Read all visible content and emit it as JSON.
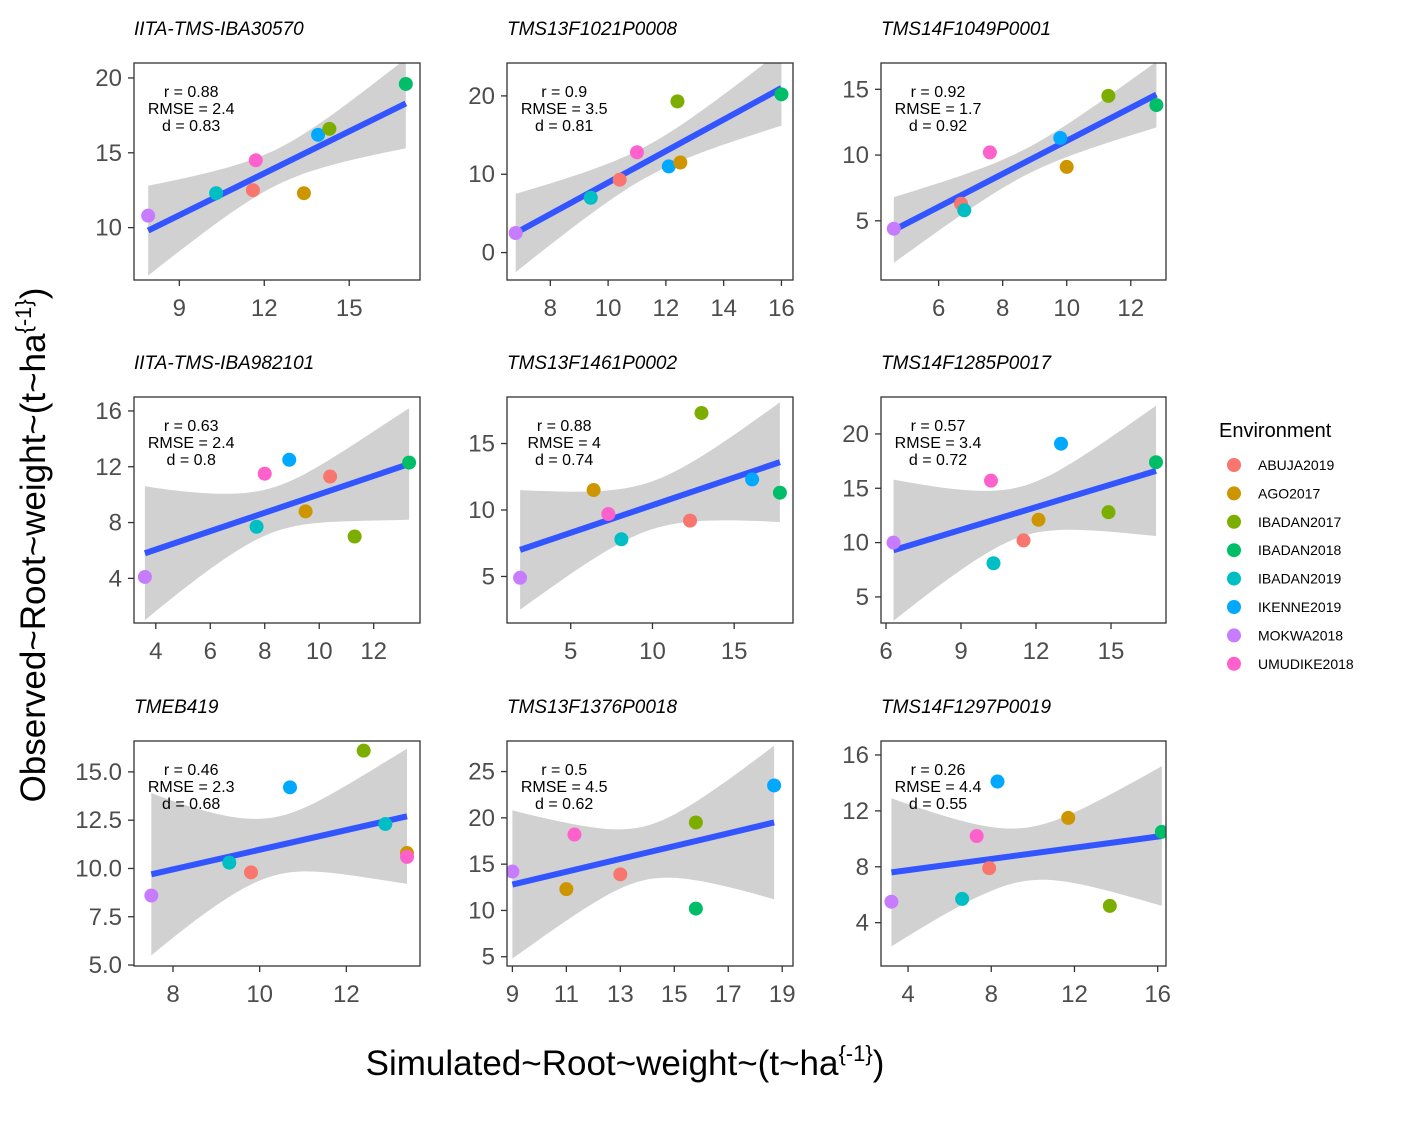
{
  "figure": {
    "x_axis_title": "Simulated~Root~weight~(t~ha",
    "x_axis_sup": "{-1}",
    "x_axis_close": ")",
    "y_axis_title": "Observed~Root~weight~(t~ha",
    "y_axis_sup": "{-1}",
    "y_axis_close": ")"
  },
  "legend": {
    "title": "Environment",
    "items": [
      {
        "label": "ABUJA2019",
        "color": "#F8766D"
      },
      {
        "label": "AGO2017",
        "color": "#CD9600"
      },
      {
        "label": "IBADAN2017",
        "color": "#7CAE00"
      },
      {
        "label": "IBADAN2018",
        "color": "#00BE67"
      },
      {
        "label": "IBADAN2019",
        "color": "#00BFC4"
      },
      {
        "label": "IKENNE2019",
        "color": "#00A9FF"
      },
      {
        "label": "MOKWA2018",
        "color": "#C77CFF"
      },
      {
        "label": "UMUDIKE2018",
        "color": "#FF61CC"
      }
    ]
  },
  "chart_data": [
    {
      "type": "scatter",
      "title": "IITA-TMS-IBA30570",
      "xlim": [
        7.4,
        17.5
      ],
      "ylim": [
        6.5,
        21.0
      ],
      "xticks": [
        9,
        12,
        15
      ],
      "yticks": [
        10,
        15,
        20
      ],
      "stats": {
        "r": "r = 0.88",
        "rmse": "RMSE = 2.4",
        "d": "d = 0.83"
      },
      "fit": {
        "x": [
          7.9,
          17.0
        ],
        "y": [
          9.8,
          18.3
        ],
        "se_ends": [
          3.0,
          3.0
        ],
        "se_mid": 1.2
      },
      "points": [
        {
          "env": "MOKWA2018",
          "x": 7.9,
          "y": 10.8
        },
        {
          "env": "IBADAN2019",
          "x": 10.3,
          "y": 12.3
        },
        {
          "env": "ABUJA2019",
          "x": 11.6,
          "y": 12.5
        },
        {
          "env": "UMUDIKE2018",
          "x": 11.7,
          "y": 14.5
        },
        {
          "env": "AGO2017",
          "x": 13.4,
          "y": 12.3
        },
        {
          "env": "IKENNE2019",
          "x": 13.9,
          "y": 16.2
        },
        {
          "env": "IBADAN2017",
          "x": 14.3,
          "y": 16.6
        },
        {
          "env": "IBADAN2018",
          "x": 17.0,
          "y": 19.6
        }
      ]
    },
    {
      "type": "scatter",
      "title": "TMS13F1021P0008",
      "xlim": [
        6.5,
        16.4
      ],
      "ylim": [
        -3.5,
        24.2
      ],
      "xticks": [
        8,
        10,
        12,
        14,
        16
      ],
      "yticks": [
        0,
        10,
        20
      ],
      "stats": {
        "r": "r = 0.9",
        "rmse": "RMSE = 3.5",
        "d": "d = 0.81"
      },
      "fit": {
        "x": [
          6.8,
          16.0
        ],
        "y": [
          2.5,
          21.0
        ],
        "se_ends": [
          5.0,
          4.8
        ],
        "se_mid": 2.0
      },
      "points": [
        {
          "env": "MOKWA2018",
          "x": 6.8,
          "y": 2.5
        },
        {
          "env": "IBADAN2019",
          "x": 9.4,
          "y": 7.0
        },
        {
          "env": "ABUJA2019",
          "x": 10.4,
          "y": 9.3
        },
        {
          "env": "UMUDIKE2018",
          "x": 11.0,
          "y": 12.8
        },
        {
          "env": "IKENNE2019",
          "x": 12.1,
          "y": 11.0
        },
        {
          "env": "AGO2017",
          "x": 12.5,
          "y": 11.5
        },
        {
          "env": "IBADAN2017",
          "x": 12.4,
          "y": 19.3
        },
        {
          "env": "IBADAN2018",
          "x": 16.0,
          "y": 20.2
        }
      ]
    },
    {
      "type": "scatter",
      "title": "TMS14F1049P0001",
      "xlim": [
        4.2,
        13.1
      ],
      "ylim": [
        0.5,
        17.0
      ],
      "xticks": [
        6,
        8,
        10,
        12
      ],
      "yticks": [
        5,
        10,
        15
      ],
      "stats": {
        "r": "r = 0.92",
        "rmse": "RMSE = 1.7",
        "d": "d = 0.92"
      },
      "fit": {
        "x": [
          4.6,
          12.8
        ],
        "y": [
          4.3,
          14.6
        ],
        "se_ends": [
          2.5,
          2.5
        ],
        "se_mid": 1.0
      },
      "points": [
        {
          "env": "MOKWA2018",
          "x": 4.6,
          "y": 4.4
        },
        {
          "env": "ABUJA2019",
          "x": 6.7,
          "y": 6.3
        },
        {
          "env": "IBADAN2019",
          "x": 6.8,
          "y": 5.8
        },
        {
          "env": "UMUDIKE2018",
          "x": 7.6,
          "y": 10.2
        },
        {
          "env": "IKENNE2019",
          "x": 9.8,
          "y": 11.3
        },
        {
          "env": "AGO2017",
          "x": 10.0,
          "y": 9.1
        },
        {
          "env": "IBADAN2017",
          "x": 11.3,
          "y": 14.5
        },
        {
          "env": "IBADAN2018",
          "x": 12.8,
          "y": 13.8
        }
      ]
    },
    {
      "type": "scatter",
      "title": "IITA-TMS-IBA982101",
      "xlim": [
        3.2,
        13.7
      ],
      "ylim": [
        0.8,
        17.0
      ],
      "xticks": [
        4,
        6,
        8,
        10,
        12
      ],
      "yticks": [
        4,
        8,
        12,
        16
      ],
      "stats": {
        "r": "r = 0.63",
        "rmse": "RMSE = 2.4",
        "d": "d = 0.8"
      },
      "fit": {
        "x": [
          3.6,
          13.3
        ],
        "y": [
          5.8,
          12.2
        ],
        "se_ends": [
          4.8,
          4.0
        ],
        "se_mid": 1.6
      },
      "points": [
        {
          "env": "MOKWA2018",
          "x": 3.6,
          "y": 4.1
        },
        {
          "env": "IBADAN2019",
          "x": 7.7,
          "y": 7.7
        },
        {
          "env": "UMUDIKE2018",
          "x": 8.0,
          "y": 11.5
        },
        {
          "env": "IKENNE2019",
          "x": 8.9,
          "y": 12.5
        },
        {
          "env": "AGO2017",
          "x": 9.5,
          "y": 8.8
        },
        {
          "env": "ABUJA2019",
          "x": 10.4,
          "y": 11.3
        },
        {
          "env": "IBADAN2017",
          "x": 11.3,
          "y": 7.0
        },
        {
          "env": "IBADAN2018",
          "x": 13.3,
          "y": 12.3
        }
      ]
    },
    {
      "type": "scatter",
      "title": "TMS13F1461P0002",
      "xlim": [
        1.1,
        18.6
      ],
      "ylim": [
        1.5,
        18.5
      ],
      "xticks": [
        5,
        10,
        15
      ],
      "yticks": [
        5,
        10,
        15
      ],
      "stats": {
        "r": "r = 0.88",
        "rmse": "RMSE = 4",
        "d": "d = 0.74"
      },
      "fit": {
        "x": [
          1.9,
          17.8
        ],
        "y": [
          7.0,
          13.6
        ],
        "se_ends": [
          4.5,
          4.5
        ],
        "se_mid": 1.8
      },
      "points": [
        {
          "env": "MOKWA2018",
          "x": 1.9,
          "y": 4.9
        },
        {
          "env": "AGO2017",
          "x": 6.4,
          "y": 11.5
        },
        {
          "env": "UMUDIKE2018",
          "x": 7.3,
          "y": 9.7
        },
        {
          "env": "IBADAN2019",
          "x": 8.1,
          "y": 7.8
        },
        {
          "env": "ABUJA2019",
          "x": 12.3,
          "y": 9.2
        },
        {
          "env": "IBADAN2017",
          "x": 13.0,
          "y": 17.3
        },
        {
          "env": "IKENNE2019",
          "x": 16.1,
          "y": 12.3
        },
        {
          "env": "IBADAN2018",
          "x": 17.8,
          "y": 11.3
        }
      ]
    },
    {
      "type": "scatter",
      "title": "TMS14F1285P0017",
      "xlim": [
        5.8,
        17.2
      ],
      "ylim": [
        2.6,
        23.4
      ],
      "xticks": [
        6,
        9,
        12,
        15
      ],
      "yticks": [
        5,
        10,
        15,
        20
      ],
      "stats": {
        "r": "r = 0.57",
        "rmse": "RMSE = 3.4",
        "d": "d = 0.72"
      },
      "fit": {
        "x": [
          6.3,
          16.8
        ],
        "y": [
          9.3,
          16.6
        ],
        "se_ends": [
          6.5,
          6.0
        ],
        "se_mid": 2.3
      },
      "points": [
        {
          "env": "MOKWA2018",
          "x": 6.3,
          "y": 10.0
        },
        {
          "env": "IBADAN2019",
          "x": 10.3,
          "y": 8.1
        },
        {
          "env": "UMUDIKE2018",
          "x": 10.2,
          "y": 15.7
        },
        {
          "env": "ABUJA2019",
          "x": 11.5,
          "y": 10.2
        },
        {
          "env": "AGO2017",
          "x": 12.1,
          "y": 12.1
        },
        {
          "env": "IKENNE2019",
          "x": 13.0,
          "y": 19.1
        },
        {
          "env": "IBADAN2017",
          "x": 14.9,
          "y": 12.8
        },
        {
          "env": "IBADAN2018",
          "x": 16.8,
          "y": 17.4
        }
      ]
    },
    {
      "type": "scatter",
      "title": "TMEB419",
      "xlim": [
        7.1,
        13.7
      ],
      "ylim": [
        4.95,
        16.6
      ],
      "xticks": [
        8,
        10,
        12
      ],
      "yticks": [
        5.0,
        7.5,
        10.0,
        12.5,
        15.0
      ],
      "stats": {
        "r": "r = 0.46",
        "rmse": "RMSE = 2.3",
        "d": "d = 0.68"
      },
      "fit": {
        "x": [
          7.5,
          13.4
        ],
        "y": [
          9.7,
          12.7
        ],
        "se_ends": [
          4.2,
          3.5
        ],
        "se_mid": 1.5
      },
      "points": [
        {
          "env": "MOKWA2018",
          "x": 7.5,
          "y": 8.6
        },
        {
          "env": "IBADAN2019",
          "x": 9.3,
          "y": 10.3
        },
        {
          "env": "ABUJA2019",
          "x": 9.8,
          "y": 9.8
        },
        {
          "env": "IKENNE2019",
          "x": 10.7,
          "y": 14.2
        },
        {
          "env": "IBADAN2017",
          "x": 12.4,
          "y": 16.1
        },
        {
          "env": "IBADAN2019",
          "x": 12.9,
          "y": 12.3
        },
        {
          "env": "AGO2017",
          "x": 13.4,
          "y": 10.8
        },
        {
          "env": "UMUDIKE2018",
          "x": 13.4,
          "y": 10.6
        }
      ]
    },
    {
      "type": "scatter",
      "title": "TMS13F1376P0018",
      "xlim": [
        8.8,
        19.4
      ],
      "ylim": [
        4.0,
        28.3
      ],
      "xticks": [
        9,
        11,
        13,
        15,
        17,
        19
      ],
      "yticks": [
        5,
        10,
        15,
        20,
        25
      ],
      "stats": {
        "r": "r = 0.5",
        "rmse": "RMSE = 4.5",
        "d": "d = 0.62"
      },
      "fit": {
        "x": [
          9.0,
          18.7
        ],
        "y": [
          12.8,
          19.5
        ],
        "se_ends": [
          8.0,
          8.3
        ],
        "se_mid": 2.9
      },
      "points": [
        {
          "env": "MOKWA2018",
          "x": 9.0,
          "y": 14.2
        },
        {
          "env": "AGO2017",
          "x": 11.0,
          "y": 12.3
        },
        {
          "env": "UMUDIKE2018",
          "x": 11.3,
          "y": 18.2
        },
        {
          "env": "ABUJA2019",
          "x": 13.0,
          "y": 13.9
        },
        {
          "env": "IBADAN2017",
          "x": 15.8,
          "y": 19.5
        },
        {
          "env": "IBADAN2018",
          "x": 15.8,
          "y": 10.2
        },
        {
          "env": "IKENNE2019",
          "x": 18.7,
          "y": 23.5
        }
      ]
    },
    {
      "type": "scatter",
      "title": "TMS14F1297P0019",
      "xlim": [
        2.7,
        16.4
      ],
      "ylim": [
        0.9,
        17.0
      ],
      "xticks": [
        4,
        8,
        12,
        16
      ],
      "yticks": [
        4,
        8,
        12,
        16
      ],
      "stats": {
        "r": "r = 0.26",
        "rmse": "RMSE = 4.4",
        "d": "d = 0.55"
      },
      "fit": {
        "x": [
          3.2,
          16.2
        ],
        "y": [
          7.6,
          10.2
        ],
        "se_ends": [
          5.3,
          5.0
        ],
        "se_mid": 1.9
      },
      "points": [
        {
          "env": "MOKWA2018",
          "x": 3.2,
          "y": 5.5
        },
        {
          "env": "IBADAN2019",
          "x": 6.6,
          "y": 5.7
        },
        {
          "env": "UMUDIKE2018",
          "x": 7.3,
          "y": 10.2
        },
        {
          "env": "ABUJA2019",
          "x": 7.9,
          "y": 7.9
        },
        {
          "env": "IKENNE2019",
          "x": 8.3,
          "y": 14.1
        },
        {
          "env": "AGO2017",
          "x": 11.7,
          "y": 11.5
        },
        {
          "env": "IBADAN2017",
          "x": 13.7,
          "y": 5.2
        },
        {
          "env": "IBADAN2018",
          "x": 16.2,
          "y": 10.5
        }
      ]
    }
  ]
}
